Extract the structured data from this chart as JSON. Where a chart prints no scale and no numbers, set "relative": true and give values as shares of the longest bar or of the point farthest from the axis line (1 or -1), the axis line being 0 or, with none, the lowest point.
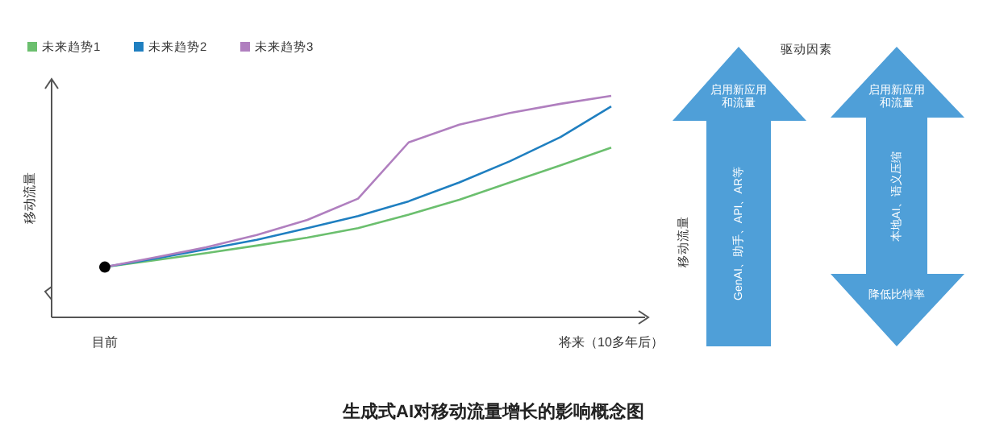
{
  "chart_data": {
    "type": "line",
    "title": "生成式AI对移动流量增长的影响概念图",
    "ylabel": "移动流量",
    "relative": true,
    "legend": "top left",
    "line_style": "solid",
    "categories": [
      "目前",
      null,
      null,
      null,
      null,
      null,
      null,
      null,
      null,
      null,
      "将来（10多年后）"
    ],
    "series": [
      {
        "name": "未来趋势1",
        "color": "#6bbf6e",
        "values": [
          0.227,
          0.258,
          0.29,
          0.324,
          0.36,
          0.403,
          0.464,
          0.531,
          0.609,
          0.686,
          0.766
        ]
      },
      {
        "name": "未来趋势2",
        "color": "#1f7fc0",
        "values": [
          0.227,
          0.266,
          0.307,
          0.35,
          0.403,
          0.457,
          0.524,
          0.609,
          0.705,
          0.814,
          0.952
        ]
      },
      {
        "name": "未来趋势3",
        "color": "#b07fbf",
        "values": [
          0.227,
          0.271,
          0.316,
          0.372,
          0.44,
          0.536,
          0.79,
          0.87,
          0.923,
          0.964,
          1
        ]
      }
    ],
    "annotations": [
      "驱动因素",
      "移动流量",
      "启用新应用和流量",
      "GenAI、助手、API、AR等",
      "启用新应用和流量",
      "本地AI、语义压缩",
      "降低比特率"
    ]
  }
}
